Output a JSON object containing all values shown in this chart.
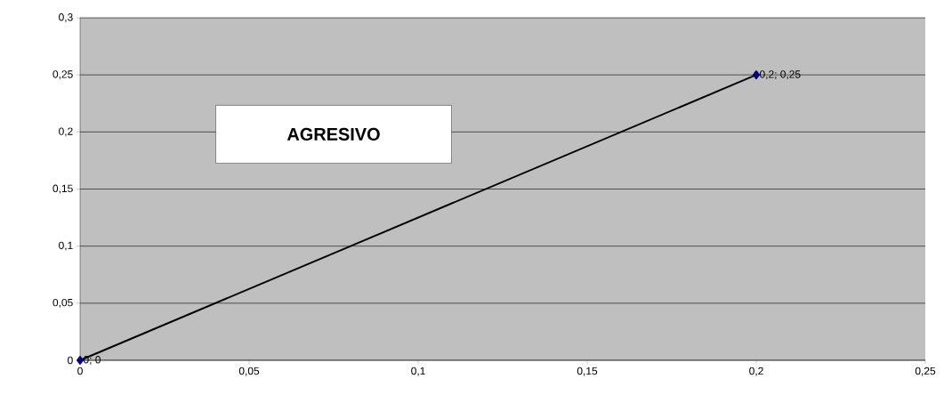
{
  "chart_data": {
    "type": "line",
    "annotations": [
      "AGRESIVO"
    ],
    "x": [
      0,
      0.2
    ],
    "series": [
      {
        "color": "#000000",
        "values": [
          0,
          0.25
        ],
        "value_labels": [
          "0; 0",
          "0,2; 0,25"
        ]
      }
    ],
    "xlim": [
      0,
      0.25
    ],
    "ylim": [
      0,
      0.3
    ],
    "xticks": [
      0,
      {
        "value": 0.05,
        "label": "0,05"
      },
      {
        "value": 0.1,
        "label": "0,1"
      },
      {
        "value": 0.15,
        "label": "0,15"
      },
      {
        "value": 0.2,
        "label": "0,2"
      },
      {
        "value": 0.25,
        "label": "0,25"
      }
    ],
    "yticks": [
      0,
      {
        "value": 0.05,
        "label": "0,05"
      },
      {
        "value": 0.1,
        "label": "0,1"
      },
      {
        "value": 0.15,
        "label": "0,15"
      },
      {
        "value": 0.2,
        "label": "0,2"
      },
      {
        "value": 0.25,
        "label": "0,25"
      },
      {
        "value": 0.3,
        "label": "0,3"
      }
    ],
    "grid": "y",
    "marker": "diamond",
    "line_style": "solid"
  }
}
